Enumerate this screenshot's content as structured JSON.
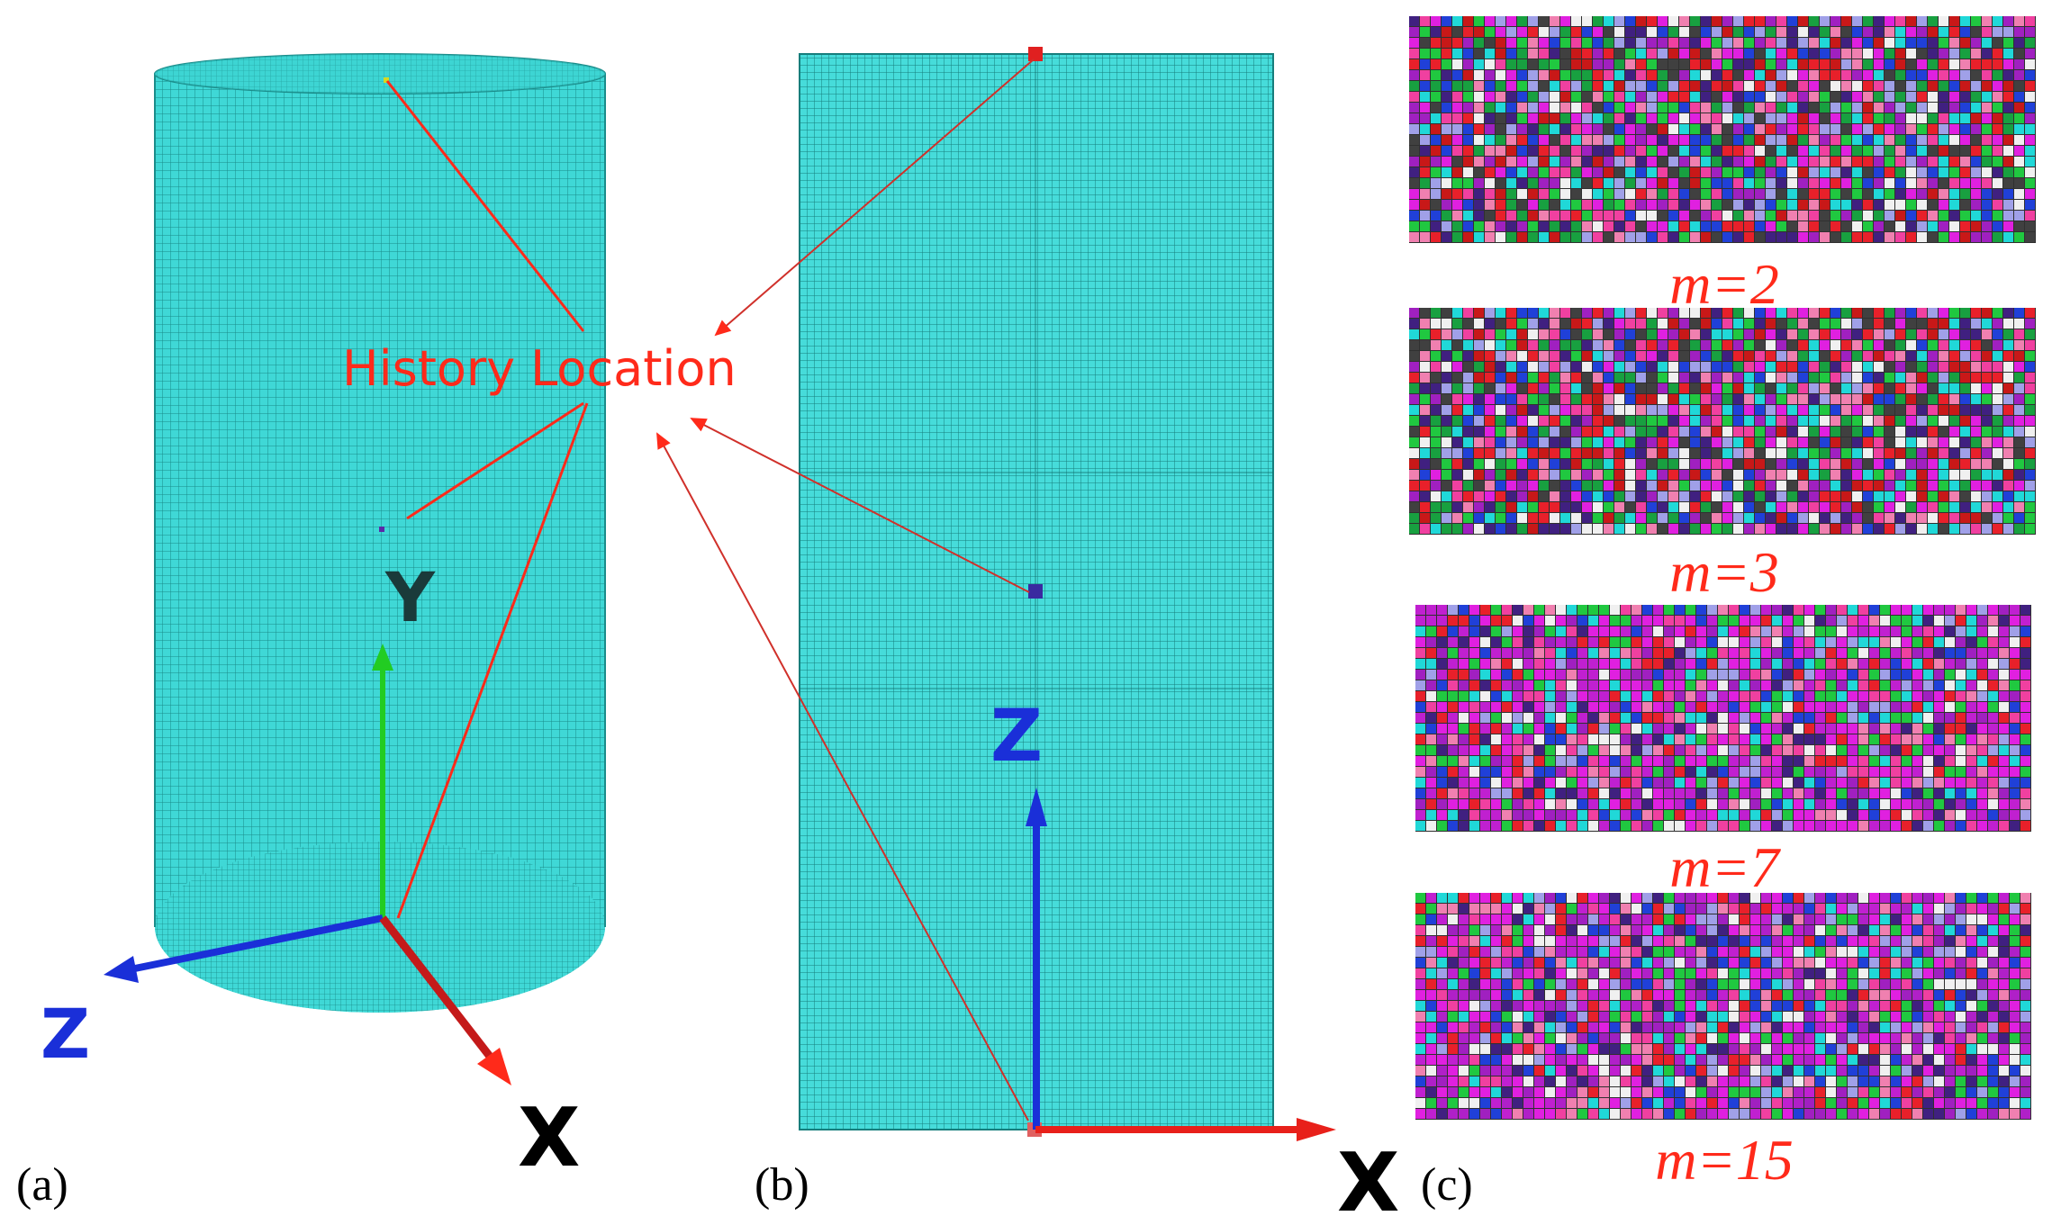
{
  "panel_a": {
    "caption": "(a)",
    "annotation": "History Location",
    "axes": {
      "y": "Y",
      "z": "Z",
      "x": "X"
    }
  },
  "panel_b": {
    "caption": "(b)",
    "axes": {
      "z": "Z",
      "x": "X"
    }
  },
  "panel_c": {
    "caption": "(c)",
    "labels": [
      "m=2",
      "m=3",
      "m=7",
      "m=15"
    ]
  },
  "colors": {
    "mesh_fill": "#3fd8d6",
    "mesh_line": "#1a8c8a",
    "annotation_red": "#ff2a1a",
    "axis_x": "#e8201a",
    "axis_y": "#22cc22",
    "axis_z": "#1a2fd8"
  }
}
